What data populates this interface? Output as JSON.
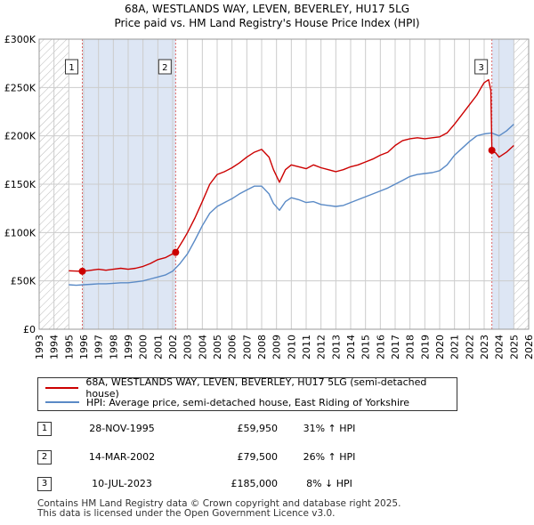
{
  "title": {
    "line1": "68A, WESTLANDS WAY, LEVEN, BEVERLEY, HU17 5LG",
    "line2": "Price paid vs. HM Land Registry's House Price Index (HPI)"
  },
  "chart_data": {
    "type": "line",
    "title": "68A, WESTLANDS WAY, LEVEN, BEVERLEY, HU17 5LG — Price paid vs. HM Land Registry's House Price Index (HPI)",
    "xlabel": "",
    "ylabel": "",
    "xlim": [
      1993,
      2026
    ],
    "ylim": [
      0,
      300000
    ],
    "x_ticks": [
      1993,
      1994,
      1995,
      1996,
      1997,
      1998,
      1999,
      2000,
      2001,
      2002,
      2003,
      2004,
      2005,
      2006,
      2007,
      2008,
      2009,
      2010,
      2011,
      2012,
      2013,
      2014,
      2015,
      2016,
      2017,
      2018,
      2019,
      2020,
      2021,
      2022,
      2023,
      2024,
      2025,
      2026
    ],
    "y_ticks": [
      0,
      50000,
      100000,
      150000,
      200000,
      250000,
      300000
    ],
    "y_tick_labels": [
      "£0",
      "£50K",
      "£100K",
      "£150K",
      "£200K",
      "£250K",
      "£300K"
    ],
    "grid": true,
    "hatched_regions": [
      [
        1993,
        1995.0
      ],
      [
        2025.0,
        2026
      ]
    ],
    "shaded_regions": [
      [
        1995.91,
        2002.2
      ],
      [
        2023.52,
        2025.0
      ]
    ],
    "series": [
      {
        "name": "68A, WESTLANDS WAY, LEVEN, BEVERLEY, HU17 5LG (semi-detached house)",
        "color": "#cc0000",
        "x": [
          1995.0,
          1995.91,
          1996.5,
          1997.0,
          1997.5,
          1998.0,
          1998.5,
          1999.0,
          1999.5,
          2000.0,
          2000.5,
          2001.0,
          2001.5,
          2002.0,
          2002.2,
          2002.7,
          2003.0,
          2003.5,
          2004.0,
          2004.5,
          2005.0,
          2005.5,
          2006.0,
          2006.5,
          2007.0,
          2007.5,
          2008.0,
          2008.5,
          2008.8,
          2009.2,
          2009.6,
          2010.0,
          2010.5,
          2011.0,
          2011.5,
          2012.0,
          2012.5,
          2013.0,
          2013.5,
          2014.0,
          2014.5,
          2015.0,
          2015.5,
          2016.0,
          2016.5,
          2017.0,
          2017.5,
          2018.0,
          2018.5,
          2019.0,
          2019.5,
          2020.0,
          2020.5,
          2021.0,
          2021.5,
          2022.0,
          2022.5,
          2022.8,
          2023.0,
          2023.3,
          2023.45,
          2023.52,
          2023.8,
          2024.0,
          2024.5,
          2025.0
        ],
        "values": [
          60500,
          59950,
          61000,
          62000,
          61000,
          62000,
          63000,
          62000,
          63000,
          65000,
          68000,
          72000,
          74000,
          78000,
          79500,
          92000,
          100000,
          115000,
          132000,
          150000,
          160000,
          163000,
          167000,
          172000,
          178000,
          183000,
          186000,
          178000,
          165000,
          152000,
          165000,
          170000,
          168000,
          166000,
          170000,
          167000,
          165000,
          163000,
          165000,
          168000,
          170000,
          173000,
          176000,
          180000,
          183000,
          190000,
          195000,
          197000,
          198000,
          197000,
          198000,
          199000,
          203000,
          212000,
          222000,
          232000,
          242000,
          250000,
          255000,
          258000,
          247000,
          185000,
          182000,
          178000,
          183000,
          190000
        ]
      },
      {
        "name": "HPI: Average price, semi-detached house, East Riding of Yorkshire",
        "color": "#5a8ac6",
        "x": [
          1995.0,
          1995.5,
          1996.0,
          1996.5,
          1997.0,
          1997.5,
          1998.0,
          1998.5,
          1999.0,
          1999.5,
          2000.0,
          2000.5,
          2001.0,
          2001.5,
          2002.0,
          2002.5,
          2003.0,
          2003.5,
          2004.0,
          2004.5,
          2005.0,
          2005.5,
          2006.0,
          2006.5,
          2007.0,
          2007.5,
          2008.0,
          2008.5,
          2008.8,
          2009.2,
          2009.6,
          2010.0,
          2010.5,
          2011.0,
          2011.5,
          2012.0,
          2012.5,
          2013.0,
          2013.5,
          2014.0,
          2014.5,
          2015.0,
          2015.5,
          2016.0,
          2016.5,
          2017.0,
          2017.5,
          2018.0,
          2018.5,
          2019.0,
          2019.5,
          2020.0,
          2020.5,
          2021.0,
          2021.5,
          2022.0,
          2022.5,
          2023.0,
          2023.5,
          2024.0,
          2024.5,
          2025.0
        ],
        "values": [
          46000,
          45500,
          46000,
          46500,
          47000,
          47000,
          47500,
          48000,
          48000,
          49000,
          50000,
          52000,
          54000,
          56000,
          60000,
          68000,
          78000,
          92000,
          107000,
          120000,
          127000,
          131000,
          135000,
          140000,
          144000,
          148000,
          148000,
          140000,
          130000,
          123000,
          132000,
          136000,
          134000,
          131000,
          132000,
          129000,
          128000,
          127000,
          128000,
          131000,
          134000,
          137000,
          140000,
          143000,
          146000,
          150000,
          154000,
          158000,
          160000,
          161000,
          162000,
          164000,
          170000,
          180000,
          187000,
          194000,
          200000,
          202000,
          203000,
          200000,
          205000,
          212000
        ]
      }
    ],
    "annotations": [
      {
        "label": "1",
        "x": 1995.91,
        "value": 59950
      },
      {
        "label": "2",
        "x": 2002.2,
        "value": 79500
      },
      {
        "label": "3",
        "x": 2023.52,
        "value": 185000
      }
    ]
  },
  "legend": {
    "property_label": "68A, WESTLANDS WAY, LEVEN, BEVERLEY, HU17 5LG (semi-detached house)",
    "hpi_label": "HPI: Average price, semi-detached house, East Riding of Yorkshire"
  },
  "transactions": [
    {
      "num": "1",
      "date": "28-NOV-1995",
      "price": "£59,950",
      "hpi": "31% ↑ HPI"
    },
    {
      "num": "2",
      "date": "14-MAR-2002",
      "price": "£79,500",
      "hpi": "26% ↑ HPI"
    },
    {
      "num": "3",
      "date": "10-JUL-2023",
      "price": "£185,000",
      "hpi": "8% ↓ HPI"
    }
  ],
  "footer": {
    "line1": "Contains HM Land Registry data © Crown copyright and database right 2025.",
    "line2": "This data is licensed under the Open Government Licence v3.0."
  },
  "colors": {
    "property": "#cc0000",
    "hpi": "#5a8ac6",
    "shade": "#dde6f4",
    "grid": "#cccccc",
    "marker_line": "#dd6666"
  }
}
